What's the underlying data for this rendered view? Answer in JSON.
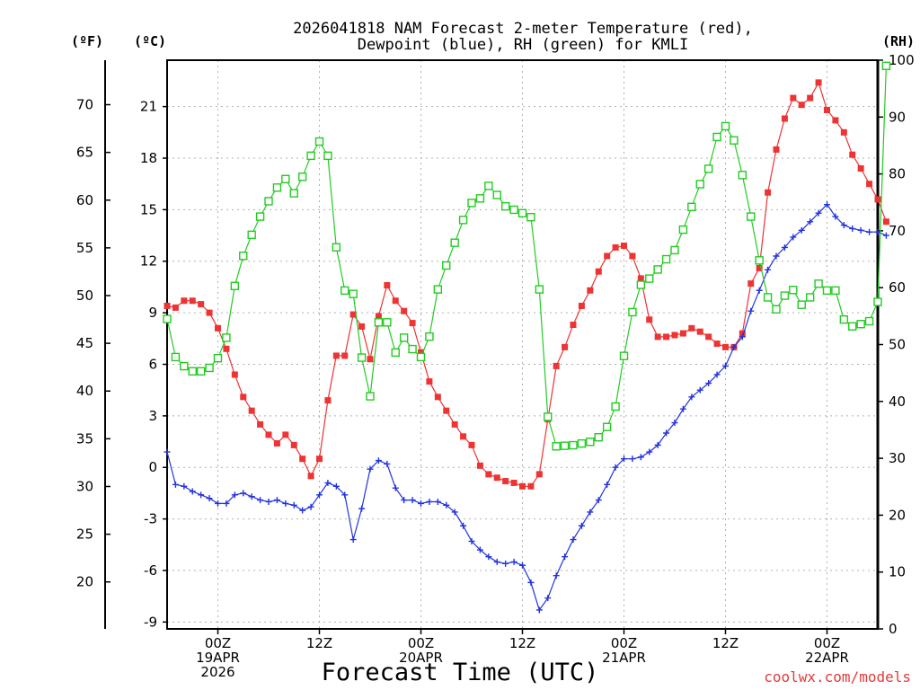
{
  "chart_data": {
    "type": "line",
    "title_line1": "2026041818 NAM Forecast 2-meter Temperature (red),",
    "title_line2": "Dewpoint (blue), RH (green) for KMLI",
    "xlabel": "Forecast Time (UTC)",
    "unit_f": "(ºF)",
    "unit_c": "(ºC)",
    "unit_rh": "(RH)",
    "credit": "coolwx.com/models",
    "celsius_range": [
      -9.4,
      23.7
    ],
    "rh_range": [
      0,
      100
    ],
    "celsius_ticks": [
      -9,
      -6,
      -3,
      0,
      3,
      6,
      9,
      12,
      15,
      18,
      21
    ],
    "fahrenheit_ticks": [
      20,
      25,
      30,
      35,
      40,
      45,
      50,
      55,
      60,
      65,
      70
    ],
    "rh_ticks": [
      0,
      10,
      20,
      30,
      40,
      50,
      60,
      70,
      80,
      90,
      100
    ],
    "x_hours_range": [
      0,
      84
    ],
    "x_ticks": [
      {
        "hour": 6,
        "lines": [
          "00Z",
          "19APR",
          "2026"
        ]
      },
      {
        "hour": 18,
        "lines": [
          "12Z"
        ]
      },
      {
        "hour": 30,
        "lines": [
          "00Z",
          "20APR"
        ]
      },
      {
        "hour": 42,
        "lines": [
          "12Z"
        ]
      },
      {
        "hour": 54,
        "lines": [
          "00Z",
          "21APR"
        ]
      },
      {
        "hour": 66,
        "lines": [
          "12Z"
        ]
      },
      {
        "hour": 78,
        "lines": [
          "00Z",
          "22APR"
        ]
      }
    ],
    "series": [
      {
        "name": "Temperature",
        "units": "C",
        "color": "#ee3333",
        "marker": "filled-square",
        "values": [
          9.4,
          9.3,
          9.7,
          9.7,
          9.5,
          9.0,
          8.1,
          6.9,
          5.4,
          4.1,
          3.3,
          2.5,
          1.9,
          1.4,
          1.9,
          1.3,
          0.5,
          -0.5,
          0.5,
          3.9,
          6.5,
          6.5,
          8.9,
          8.2,
          6.3,
          8.8,
          10.6,
          9.7,
          9.1,
          8.4,
          6.7,
          5.0,
          4.1,
          3.3,
          2.5,
          1.8,
          1.3,
          0.1,
          -0.4,
          -0.6,
          -0.8,
          -0.9,
          -1.1,
          -1.1,
          -0.4,
          2.8,
          5.9,
          7.0,
          8.3,
          9.4,
          10.3,
          11.4,
          12.3,
          12.8,
          12.9,
          12.3,
          11.0,
          8.6,
          7.6,
          7.6,
          7.7,
          7.8,
          8.1,
          7.9,
          7.6,
          7.2,
          7.0,
          7.0,
          7.8,
          10.7,
          11.6,
          16.0,
          18.5,
          20.3,
          21.5,
          21.1,
          21.5,
          22.4,
          20.8,
          20.2,
          19.5,
          18.2,
          17.4,
          16.5,
          15.6,
          14.3
        ]
      },
      {
        "name": "Dewpoint",
        "units": "C",
        "color": "#2233dd",
        "marker": "plus",
        "values": [
          0.9,
          -1.0,
          -1.1,
          -1.4,
          -1.6,
          -1.8,
          -2.1,
          -2.1,
          -1.6,
          -1.5,
          -1.7,
          -1.9,
          -2.0,
          -1.9,
          -2.1,
          -2.2,
          -2.5,
          -2.3,
          -1.6,
          -0.9,
          -1.1,
          -1.6,
          -4.2,
          -2.4,
          -0.1,
          0.4,
          0.2,
          -1.2,
          -1.9,
          -1.9,
          -2.1,
          -2.0,
          -2.0,
          -2.2,
          -2.6,
          -3.4,
          -4.3,
          -4.8,
          -5.2,
          -5.5,
          -5.6,
          -5.5,
          -5.7,
          -6.7,
          -8.3,
          -7.6,
          -6.3,
          -5.2,
          -4.2,
          -3.4,
          -2.6,
          -1.9,
          -1.0,
          0.0,
          0.5,
          0.5,
          0.6,
          0.9,
          1.3,
          2.0,
          2.6,
          3.4,
          4.1,
          4.5,
          4.9,
          5.4,
          5.9,
          7.0,
          7.6,
          9.1,
          10.3,
          11.5,
          12.3,
          12.8,
          13.4,
          13.8,
          14.3,
          14.8,
          15.3,
          14.6,
          14.1,
          13.9,
          13.8,
          13.7,
          13.7,
          13.5
        ]
      },
      {
        "name": "RH",
        "units": "%",
        "color": "#22cc22",
        "marker": "open-square",
        "values": [
          54.5,
          47.8,
          46.2,
          45.3,
          45.3,
          45.9,
          47.6,
          51.2,
          60.3,
          65.6,
          69.3,
          72.5,
          75.2,
          77.6,
          79.1,
          76.6,
          79.5,
          83.2,
          85.7,
          83.2,
          67.1,
          59.5,
          58.9,
          47.7,
          40.9,
          53.9,
          53.9,
          48.6,
          51.2,
          49.2,
          47.8,
          51.4,
          59.7,
          63.9,
          67.9,
          71.9,
          74.9,
          75.7,
          77.9,
          76.3,
          74.3,
          73.7,
          73.1,
          72.4,
          59.7,
          37.3,
          32.1,
          32.2,
          32.3,
          32.6,
          32.9,
          33.7,
          35.5,
          39.1,
          48.0,
          55.7,
          60.5,
          61.6,
          63.2,
          65.0,
          66.6,
          70.2,
          74.2,
          78.2,
          80.9,
          86.5,
          88.4,
          85.9,
          79.8,
          72.5,
          64.8,
          58.3,
          56.2,
          58.6,
          59.6,
          57.0,
          58.3,
          60.7,
          59.5,
          59.5,
          54.4,
          53.2,
          53.6,
          54.1,
          57.5,
          99.0
        ]
      }
    ]
  }
}
